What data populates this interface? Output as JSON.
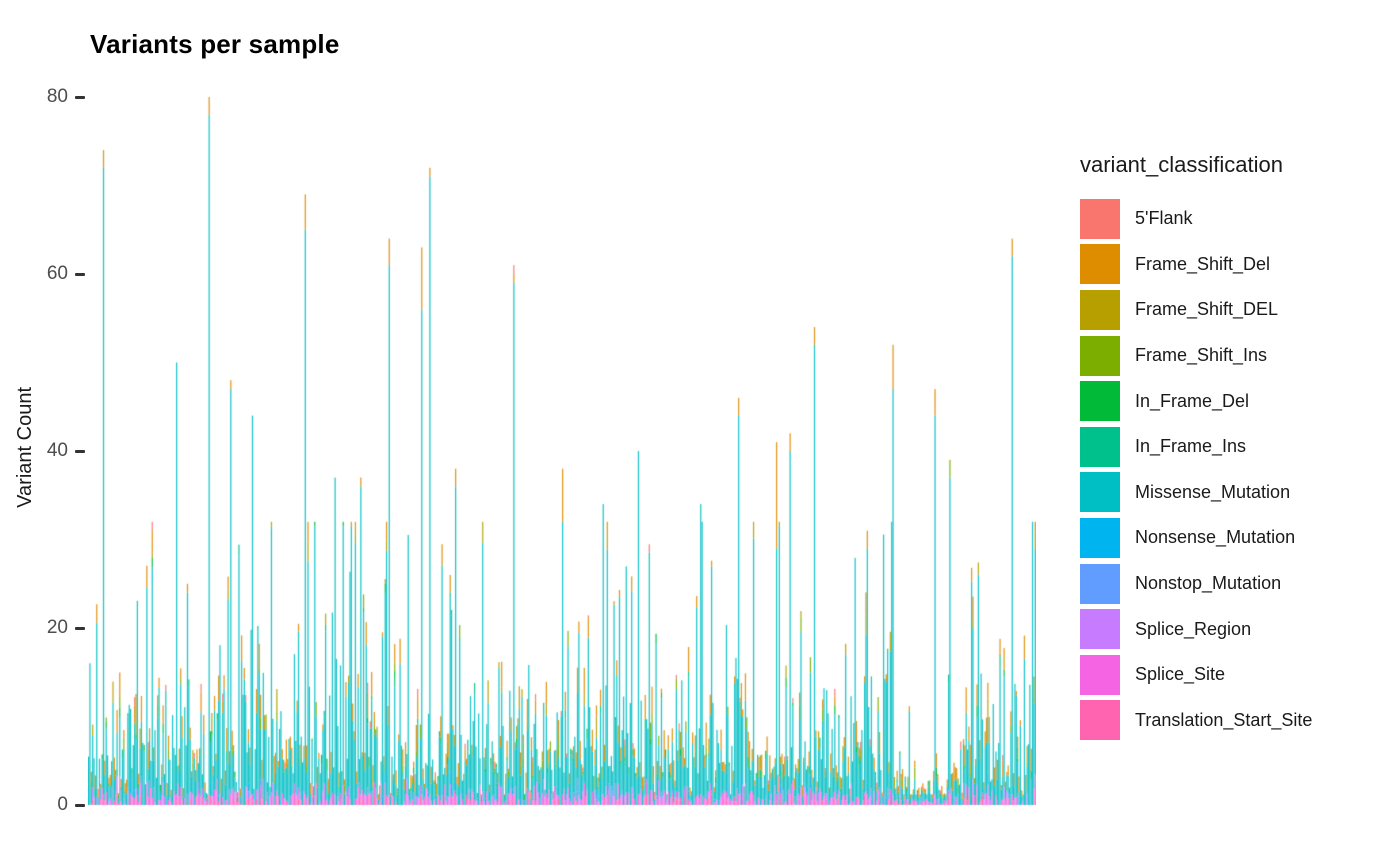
{
  "title": "Variants per sample",
  "y_axis": {
    "label": "Variant Count"
  },
  "legend": {
    "title": "variant_classification",
    "items": [
      {
        "label": "5'Flank",
        "color": "#F8766D"
      },
      {
        "label": "Frame_Shift_Del",
        "color": "#DE8C00"
      },
      {
        "label": "Frame_Shift_DEL",
        "color": "#B79F00"
      },
      {
        "label": "Frame_Shift_Ins",
        "color": "#7CAE00"
      },
      {
        "label": "In_Frame_Del",
        "color": "#00BA38"
      },
      {
        "label": "In_Frame_Ins",
        "color": "#00C08B"
      },
      {
        "label": "Missense_Mutation",
        "color": "#00BFC4"
      },
      {
        "label": "Nonsense_Mutation",
        "color": "#00B4F0"
      },
      {
        "label": "Nonstop_Mutation",
        "color": "#619CFF"
      },
      {
        "label": "Splice_Region",
        "color": "#C77CFF"
      },
      {
        "label": "Splice_Site",
        "color": "#F564E3"
      },
      {
        "label": "Translation_Start_Site",
        "color": "#FF64B0"
      }
    ]
  },
  "chart_data": {
    "type": "bar",
    "variant": "stacked-vertical-dense",
    "title": "Variants per sample",
    "xlabel": "",
    "ylabel": "Variant Count",
    "ylim": [
      0,
      80
    ],
    "yticks": [
      0,
      20,
      40,
      60,
      80
    ],
    "grid": false,
    "axis_lines": false,
    "legend_position": "right",
    "x_axis": {
      "unit": "sample",
      "tick_labels_shown": false,
      "approx_n_samples": 700
    },
    "dominant_series": "Missense_Mutation",
    "stack_order_bottom_to_top": [
      "Translation_Start_Site",
      "Splice_Site",
      "Splice_Region",
      "Nonstop_Mutation",
      "Nonsense_Mutation",
      "Missense_Mutation",
      "In_Frame_Ins",
      "In_Frame_Del",
      "Frame_Shift_Ins",
      "Frame_Shift_DEL",
      "Frame_Shift_Del",
      "5'Flank"
    ],
    "notable_peaks": [
      {
        "x_frac": 0.016,
        "total": 74,
        "tips": {
          "Frame_Shift_Del": 2
        }
      },
      {
        "x_frac": 0.093,
        "total": 50,
        "tips": {}
      },
      {
        "x_frac": 0.105,
        "total": 25,
        "tips": {
          "Frame_Shift_Del": 1
        }
      },
      {
        "x_frac": 0.127,
        "total": 80,
        "tips": {
          "Frame_Shift_Del": 2
        }
      },
      {
        "x_frac": 0.15,
        "total": 48,
        "tips": {
          "Frame_Shift_Del": 1
        }
      },
      {
        "x_frac": 0.173,
        "total": 44,
        "tips": {}
      },
      {
        "x_frac": 0.229,
        "total": 69,
        "tips": {
          "Frame_Shift_Del": 4
        }
      },
      {
        "x_frac": 0.26,
        "total": 37,
        "tips": {}
      },
      {
        "x_frac": 0.287,
        "total": 37,
        "tips": {
          "Frame_Shift_Del": 1
        }
      },
      {
        "x_frac": 0.317,
        "total": 64,
        "tips": {
          "Frame_Shift_Del": 3
        }
      },
      {
        "x_frac": 0.352,
        "total": 63,
        "tips": {
          "Frame_Shift_Del": 7
        }
      },
      {
        "x_frac": 0.36,
        "total": 72,
        "tips": {
          "Frame_Shift_Del": 1
        }
      },
      {
        "x_frac": 0.387,
        "total": 38,
        "tips": {
          "Frame_Shift_Del": 2
        }
      },
      {
        "x_frac": 0.449,
        "total": 61,
        "tips": {
          "Frame_Shift_Del": 1,
          "5'Flank": 1
        }
      },
      {
        "x_frac": 0.5,
        "total": 38,
        "tips": {
          "Frame_Shift_Del": 6
        }
      },
      {
        "x_frac": 0.544,
        "total": 34,
        "tips": {}
      },
      {
        "x_frac": 0.581,
        "total": 40,
        "tips": {}
      },
      {
        "x_frac": 0.646,
        "total": 34,
        "tips": {}
      },
      {
        "x_frac": 0.686,
        "total": 46,
        "tips": {
          "Frame_Shift_Del": 2
        }
      },
      {
        "x_frac": 0.727,
        "total": 41,
        "tips": {
          "Frame_Shift_Del": 12
        }
      },
      {
        "x_frac": 0.741,
        "total": 42,
        "tips": {
          "Frame_Shift_Del": 2
        }
      },
      {
        "x_frac": 0.767,
        "total": 54,
        "tips": {
          "Frame_Shift_Del": 2
        }
      },
      {
        "x_frac": 0.823,
        "total": 31,
        "tips": {
          "Frame_Shift_Del": 2
        }
      },
      {
        "x_frac": 0.85,
        "total": 52,
        "tips": {
          "Frame_Shift_Del": 5
        }
      },
      {
        "x_frac": 0.894,
        "total": 47,
        "tips": {
          "Frame_Shift_Del": 3
        }
      },
      {
        "x_frac": 0.91,
        "total": 39,
        "tips": {
          "Frame_Shift_Ins": 2
        }
      },
      {
        "x_frac": 0.975,
        "total": 64,
        "tips": {
          "Frame_Shift_Del": 2
        }
      }
    ],
    "background_distribution": {
      "seed": 20240517,
      "n_bars": 700,
      "height_median": 7,
      "height_sigma": 0.72,
      "height_min": 1.2,
      "height_max": 32,
      "sparse_region": {
        "from_frac": 0.852,
        "to_frac": 0.908,
        "scale": 0.35
      },
      "alpha": 0.9,
      "segments": {
        "Translation_Start_Site": {
          "p": 0.3,
          "min": 0.4,
          "max": 1.2
        },
        "Splice_Site": {
          "p": 0.5,
          "min": 0.4,
          "max": 2.0
        },
        "Splice_Region": {
          "p": 0.33,
          "min": 0.3,
          "max": 1.5
        },
        "Nonstop_Mutation": {
          "p": 0.05,
          "min": 0.3,
          "max": 1.0
        },
        "Nonsense_Mutation": {
          "p": 0.15,
          "min": 0.4,
          "max": 1.6
        },
        "In_Frame_Ins": {
          "p": 0.12,
          "min": 0.3,
          "max": 1.3
        },
        "In_Frame_Del": {
          "p": 0.12,
          "min": 0.3,
          "max": 1.3
        },
        "Frame_Shift_Ins": {
          "p": 0.12,
          "min": 0.4,
          "max": 1.8
        },
        "Frame_Shift_DEL": {
          "p": 0.17,
          "min": 0.4,
          "max": 2.6
        },
        "Frame_Shift_Del": {
          "p": 0.48,
          "min": 0.4,
          "max": 3.2
        },
        "5'Flank": {
          "p": 0.07,
          "min": 0.3,
          "max": 1.1
        }
      }
    }
  }
}
